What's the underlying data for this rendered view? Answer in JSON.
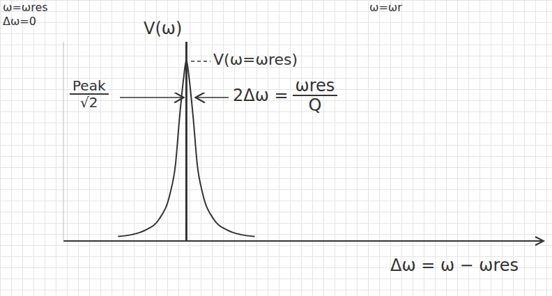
{
  "chart_data": {
    "type": "line",
    "y_label": "V(ω)",
    "x_label": "Δω = ω − ωres",
    "corner_labels": [
      "ω=ωres",
      "Δω=0"
    ],
    "top_label": "ω=ωr",
    "peak_label": "V(ω=ωres)",
    "width_label": {
      "numerator": "Peak",
      "denominator": "√2"
    },
    "bandwidth_label": {
      "left": "2Δω =",
      "numerator": "ωres",
      "denominator": "Q"
    },
    "x": [
      -0.5,
      -0.4,
      -0.3,
      -0.2,
      -0.12,
      -0.08,
      -0.05,
      -0.02,
      0,
      0.02,
      0.05,
      0.08,
      0.12,
      0.2,
      0.3,
      0.4,
      0.5
    ],
    "values": [
      0.025,
      0.035,
      0.06,
      0.12,
      0.26,
      0.42,
      0.68,
      0.9,
      1,
      0.9,
      0.68,
      0.42,
      0.26,
      0.12,
      0.06,
      0.035,
      0.025
    ],
    "xlim": [
      -0.9,
      2.6
    ],
    "ylim": [
      0,
      1.1
    ],
    "tick_labels": false,
    "color": "#333333",
    "line_style": "solid",
    "marker": "none"
  }
}
